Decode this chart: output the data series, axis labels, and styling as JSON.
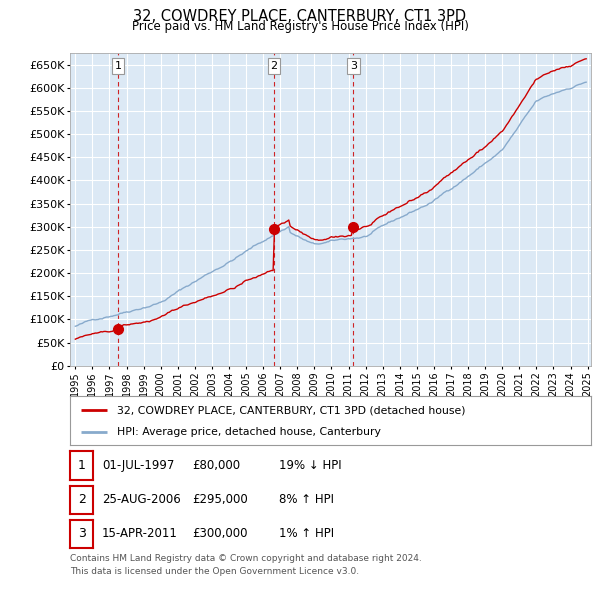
{
  "title": "32, COWDREY PLACE, CANTERBURY, CT1 3PD",
  "subtitle": "Price paid vs. HM Land Registry's House Price Index (HPI)",
  "ylim": [
    0,
    675000
  ],
  "yticks": [
    0,
    50000,
    100000,
    150000,
    200000,
    250000,
    300000,
    350000,
    400000,
    450000,
    500000,
    550000,
    600000,
    650000
  ],
  "ytick_labels": [
    "£0",
    "£50K",
    "£100K",
    "£150K",
    "£200K",
    "£250K",
    "£300K",
    "£350K",
    "£400K",
    "£450K",
    "£500K",
    "£550K",
    "£600K",
    "£650K"
  ],
  "sale_years": [
    1997.5,
    2006.644,
    2011.288
  ],
  "sale_prices": [
    80000,
    295000,
    300000
  ],
  "sale_labels": [
    "1",
    "2",
    "3"
  ],
  "legend_line1": "32, COWDREY PLACE, CANTERBURY, CT1 3PD (detached house)",
  "legend_line2": "HPI: Average price, detached house, Canterbury",
  "table_rows": [
    [
      "1",
      "01-JUL-1997",
      "£80,000",
      "19% ↓ HPI"
    ],
    [
      "2",
      "25-AUG-2006",
      "£295,000",
      "8% ↑ HPI"
    ],
    [
      "3",
      "15-APR-2011",
      "£300,000",
      "1% ↑ HPI"
    ]
  ],
  "footnote1": "Contains HM Land Registry data © Crown copyright and database right 2024.",
  "footnote2": "This data is licensed under the Open Government Licence v3.0.",
  "sale_line_color": "#cc0000",
  "hpi_line_color": "#88aacc",
  "vline_color": "#cc0000",
  "plot_bg_color": "#dce9f5",
  "grid_color": "#ffffff",
  "bg_color": "#ffffff"
}
